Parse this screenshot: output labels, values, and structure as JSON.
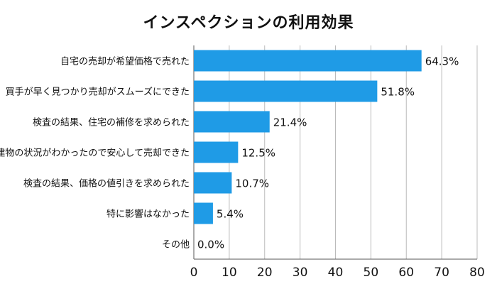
{
  "chart_data": {
    "type": "bar",
    "orientation": "horizontal",
    "title": "インスペクションの利用効果",
    "categories": [
      "自宅の売却が希望価格で売れた",
      "買手が早く見つかり売却がスムーズにできた",
      "検査の結果、住宅の補修を求められた",
      "建物の状況がわかったので安心して売却できた",
      "検査の結果、価格の値引きを求められた",
      "特に影響はなかった",
      "その他"
    ],
    "values": [
      64.3,
      51.8,
      21.4,
      12.5,
      10.7,
      5.4,
      0.0
    ],
    "value_labels": [
      "64.3%",
      "51.8%",
      "21.4%",
      "12.5%",
      "10.7%",
      "5.4%",
      "0.0%"
    ],
    "xlim": [
      0,
      80
    ],
    "xticks": [
      "0",
      "10",
      "20",
      "30",
      "40",
      "50",
      "60",
      "70",
      "80"
    ],
    "xlabel": "",
    "ylabel": "",
    "grid": true,
    "legend": "none",
    "bar_color": "#1f9be6",
    "grid_color": "#bbbbbb",
    "axis_color": "#555555"
  }
}
